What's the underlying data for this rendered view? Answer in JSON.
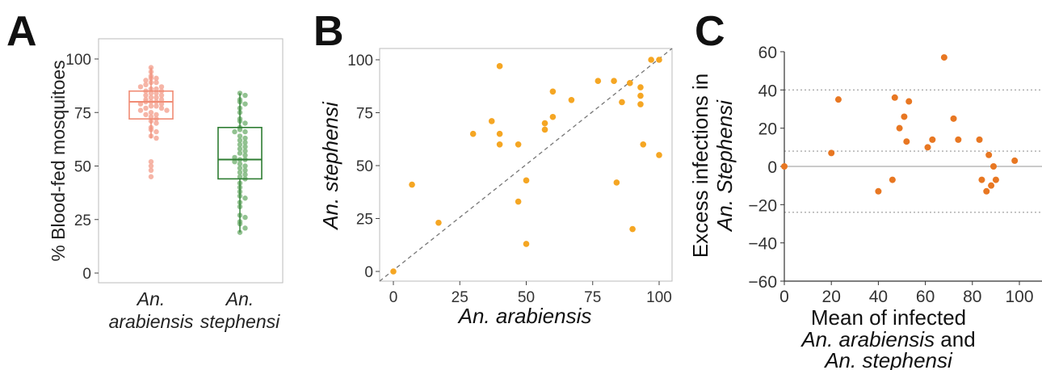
{
  "figure": {
    "panels": [
      "A",
      "B",
      "C"
    ]
  },
  "chart_data": [
    {
      "panel": "A",
      "type": "box",
      "ylabel": "% Blood-fed mosquitoes",
      "ylim": [
        0,
        100
      ],
      "yticks": [
        0,
        25,
        50,
        75,
        100
      ],
      "categories": [
        {
          "line1": "An.",
          "line2": "arabiensis"
        },
        {
          "line1": "An.",
          "line2": "stephensi"
        }
      ],
      "boxes": [
        {
          "color": "#f08c75",
          "point_color": "#f5a898",
          "whisker_low": 63,
          "q1": 72,
          "median": 80,
          "q3": 85,
          "whisker_high": 96,
          "points": [
            96,
            94,
            92,
            91,
            91,
            90,
            89,
            89,
            88,
            87,
            87,
            86,
            86,
            85,
            85,
            84,
            84,
            83,
            83,
            82,
            82,
            81,
            81,
            80,
            80,
            80,
            79,
            79,
            78,
            78,
            77,
            77,
            76,
            76,
            75,
            74,
            74,
            73,
            72,
            71,
            70,
            68,
            67,
            66,
            64,
            63,
            52,
            50,
            48,
            45
          ]
        },
        {
          "color": "#2e7d32",
          "point_color": "#7fb77e",
          "whisker_low": 19,
          "q1": 44,
          "median": 53,
          "q3": 68,
          "whisker_high": 84,
          "points": [
            84,
            83,
            81,
            80,
            79,
            77,
            75,
            72,
            71,
            70,
            68,
            67,
            66,
            66,
            64,
            63,
            62,
            61,
            60,
            59,
            58,
            57,
            56,
            55,
            54,
            53,
            53,
            52,
            51,
            50,
            49,
            48,
            47,
            46,
            45,
            44,
            42,
            40,
            38,
            36,
            35,
            33,
            31,
            27,
            26,
            24,
            23,
            21,
            19
          ]
        }
      ]
    },
    {
      "panel": "B",
      "type": "scatter",
      "xlabel": "An. arabiensis",
      "ylabel": "An. stephensi",
      "xlim": [
        0,
        100
      ],
      "ylim": [
        0,
        100
      ],
      "xticks": [
        0,
        25,
        50,
        75,
        100
      ],
      "yticks": [
        0,
        25,
        50,
        75,
        100
      ],
      "reference_line": "y = x (dashed)",
      "color": "#f5a623",
      "points": [
        [
          0,
          0
        ],
        [
          7,
          41
        ],
        [
          17,
          23
        ],
        [
          30,
          65
        ],
        [
          37,
          71
        ],
        [
          40,
          97
        ],
        [
          40,
          65
        ],
        [
          40,
          60
        ],
        [
          47,
          60
        ],
        [
          47,
          33
        ],
        [
          50,
          43
        ],
        [
          50,
          13
        ],
        [
          57,
          70
        ],
        [
          57,
          67
        ],
        [
          60,
          73
        ],
        [
          60,
          85
        ],
        [
          67,
          81
        ],
        [
          77,
          90
        ],
        [
          83,
          90
        ],
        [
          84,
          42
        ],
        [
          86,
          80
        ],
        [
          89,
          89
        ],
        [
          90,
          20
        ],
        [
          93,
          87
        ],
        [
          93,
          83
        ],
        [
          93,
          79
        ],
        [
          94,
          60
        ],
        [
          97,
          100
        ],
        [
          100,
          100
        ],
        [
          100,
          55
        ]
      ]
    },
    {
      "panel": "C",
      "type": "scatter",
      "xlabel_lines": [
        "Mean of infected",
        "An. arabiensis and",
        "An. stephensi"
      ],
      "ylabel_lines": [
        "Excess infections in",
        "An. Stephensi"
      ],
      "xlim": [
        0,
        100
      ],
      "ylim": [
        -60,
        60
      ],
      "xticks": [
        0,
        20,
        40,
        60,
        80,
        100
      ],
      "yticks": [
        60,
        40,
        20,
        0,
        -20,
        -40,
        -60
      ],
      "ytick_labels": [
        "60",
        "40",
        "20",
        "0",
        "−20",
        "−40",
        "−60"
      ],
      "hlines": [
        {
          "y": 0,
          "style": "solid"
        },
        {
          "y": 40,
          "style": "dotted"
        },
        {
          "y": 8,
          "style": "dotted"
        },
        {
          "y": -24,
          "style": "dotted"
        }
      ],
      "color": "#e87722",
      "points": [
        [
          0,
          0
        ],
        [
          20,
          7
        ],
        [
          23,
          35
        ],
        [
          40,
          -13
        ],
        [
          46,
          -7
        ],
        [
          47,
          36
        ],
        [
          49,
          20
        ],
        [
          51,
          26
        ],
        [
          52,
          13
        ],
        [
          53,
          34
        ],
        [
          61,
          10
        ],
        [
          63,
          14
        ],
        [
          68,
          57
        ],
        [
          72,
          25
        ],
        [
          74,
          14
        ],
        [
          83,
          14
        ],
        [
          84,
          -7
        ],
        [
          86,
          -13
        ],
        [
          87,
          6
        ],
        [
          88,
          -10
        ],
        [
          89,
          0
        ],
        [
          90,
          -7
        ],
        [
          98,
          3
        ]
      ]
    }
  ]
}
